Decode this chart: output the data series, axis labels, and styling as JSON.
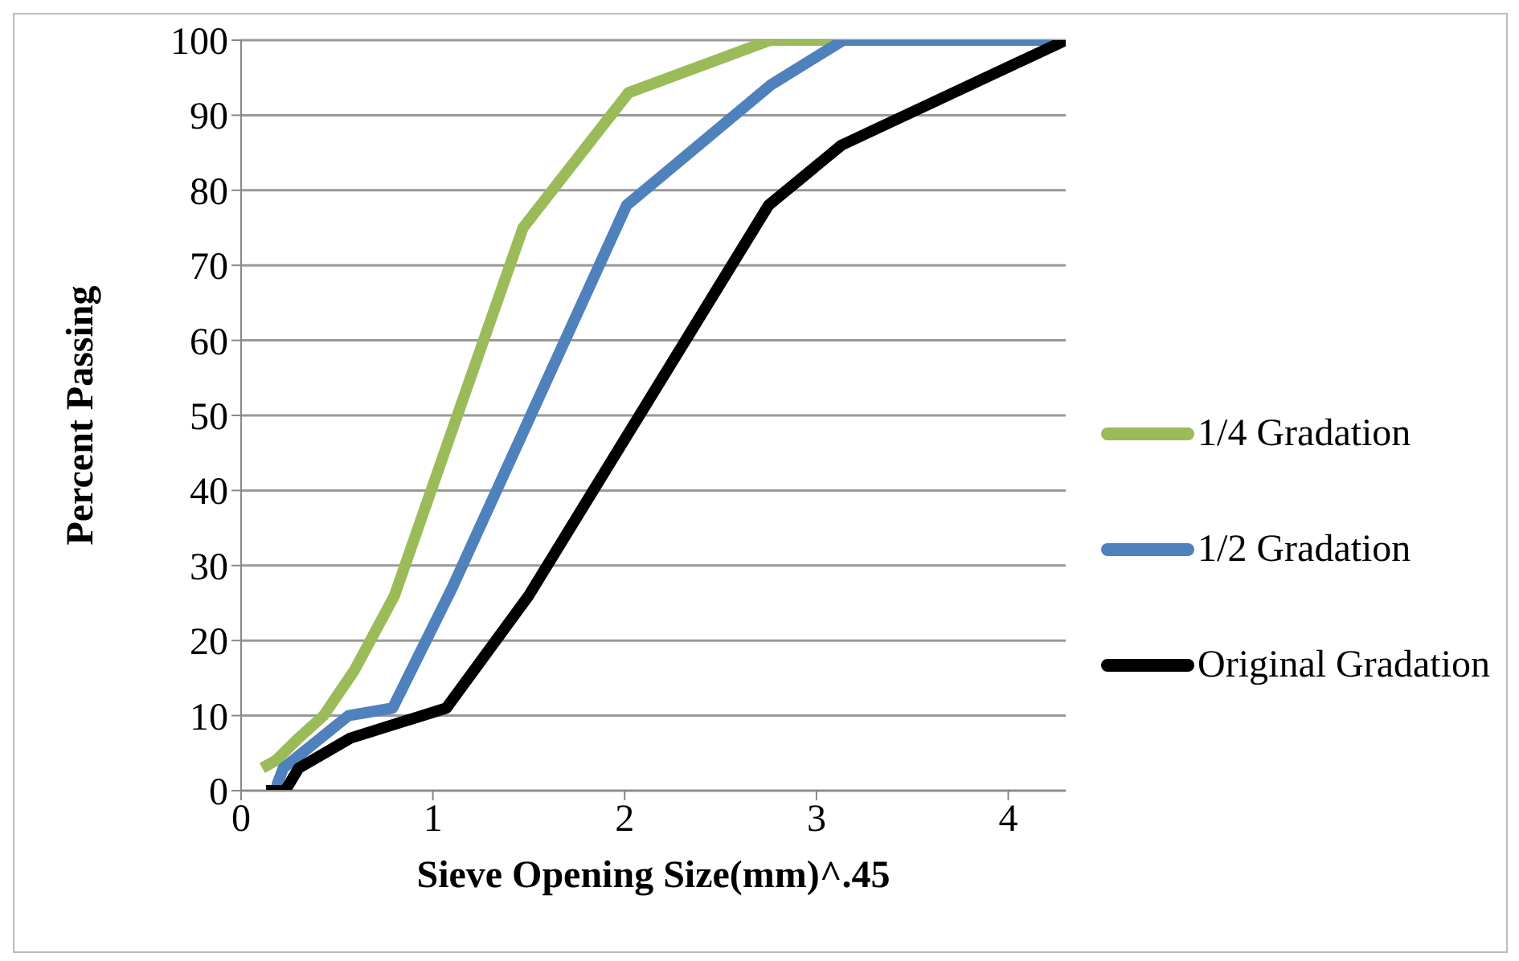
{
  "chart_data": {
    "type": "line",
    "xlabel": "Sieve Opening Size(mm)^.45",
    "ylabel": "Percent Passing",
    "xlim": [
      0,
      4.3
    ],
    "xticks": [
      0,
      1,
      2,
      3,
      4
    ],
    "ylim": [
      0,
      100
    ],
    "yticks": [
      0,
      10,
      20,
      30,
      40,
      50,
      60,
      70,
      80,
      90,
      100
    ],
    "grid": "y",
    "legend": "right",
    "marker": "none",
    "line_style": "solid",
    "series": [
      {
        "name": "1/4 Gradation",
        "color": "#9bbb59",
        "x": [
          0.11,
          0.18,
          0.3,
          0.43,
          0.59,
          0.8,
          1.1,
          1.47,
          2.02,
          2.76,
          3.14
        ],
        "values": [
          3,
          4,
          7,
          10,
          16,
          26,
          48,
          75,
          93,
          100,
          100
        ]
      },
      {
        "name": "1/2 Gradation",
        "color": "#4f81bd",
        "x": [
          0.18,
          0.19,
          0.22,
          0.56,
          0.79,
          1.1,
          2.01,
          2.76,
          3.14,
          4.3
        ],
        "values": [
          0,
          1,
          3,
          10,
          11,
          27,
          78,
          94,
          100,
          100
        ]
      },
      {
        "name": "Original Gradation",
        "color": "#000000",
        "x": [
          0.13,
          0.23,
          0.3,
          0.57,
          1.07,
          1.5,
          2.75,
          3.13,
          4.3
        ],
        "values": [
          0,
          0,
          3,
          7,
          11,
          26,
          78,
          86,
          100
        ]
      }
    ]
  }
}
